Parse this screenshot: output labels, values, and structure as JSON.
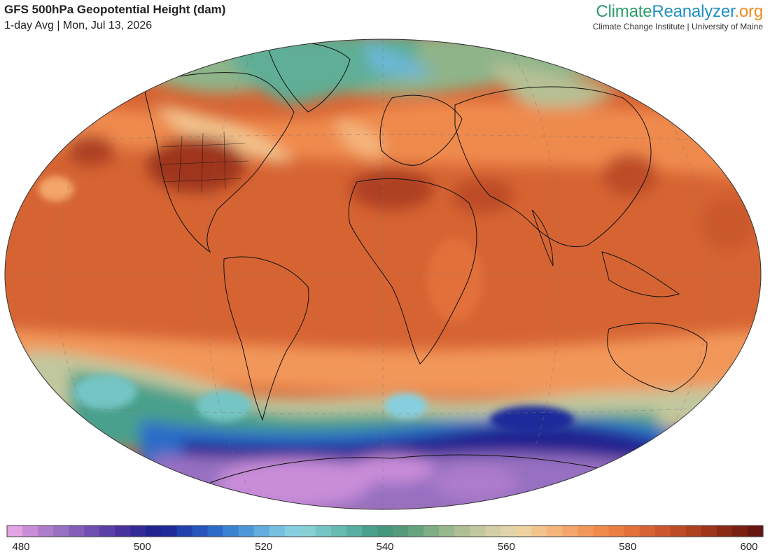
{
  "header": {
    "title": "GFS 500hPa Geopotential Height (dam)",
    "subtitle": "1-day Avg | Mon, Jul 13, 2026"
  },
  "brand": {
    "name_part1": "Climate",
    "name_part2": "Reanalyzer",
    "name_part3": ".org",
    "subtitle": "Climate Change Institute | University of Maine",
    "colors": {
      "part1": "#2a9d6a",
      "part2": "#1f8fc2",
      "part3": "#f08c1e"
    }
  },
  "legend": {
    "min": 480,
    "max": 600,
    "ticks": [
      "480",
      "500",
      "520",
      "540",
      "560",
      "580",
      "600"
    ],
    "colors": [
      "#e3a4e3",
      "#c98dd8",
      "#ad7ccb",
      "#9770c1",
      "#835fb8",
      "#6f4fb0",
      "#5a3fa6",
      "#47329c",
      "#342a95",
      "#23248f",
      "#1e2c9a",
      "#2040ab",
      "#2656bb",
      "#2c6cc8",
      "#3a83d2",
      "#4d97d9",
      "#62acde",
      "#75bfe0",
      "#86cfe0",
      "#86d0d4",
      "#75c5c4",
      "#66bbb2",
      "#58aea0",
      "#4aa08c",
      "#46967c",
      "#549a7a",
      "#68a37f",
      "#7fad86",
      "#97b78d",
      "#aebf95",
      "#c2c89e",
      "#d3cea4",
      "#e2d4aa",
      "#eed2a0",
      "#f3c38c",
      "#f4b47a",
      "#f4a66a",
      "#f2975a",
      "#ef8a4d",
      "#e97d43",
      "#e1703a",
      "#d66433",
      "#ca582c",
      "#bd4c26",
      "#ae4020",
      "#9e341b",
      "#8c2916",
      "#7a1f12",
      "#661610"
    ]
  },
  "map": {
    "projection": "Robinson-style ellipse",
    "field": "500hPa geopotential height",
    "units": "dam"
  }
}
